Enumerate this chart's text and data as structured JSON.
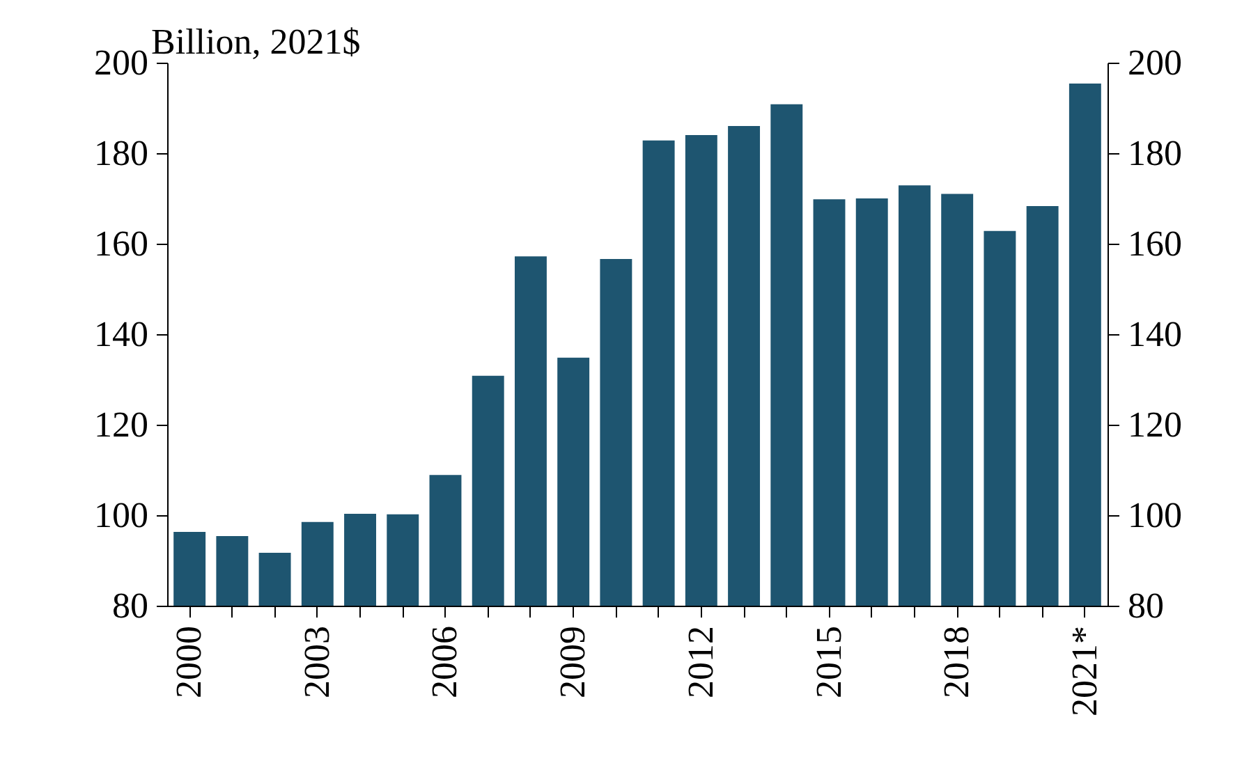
{
  "chart_data": {
    "type": "bar",
    "ylabel": "Billion, 2021$",
    "categories": [
      "2000",
      null,
      null,
      "2003",
      null,
      null,
      "2006",
      null,
      null,
      "2009",
      null,
      null,
      "2012",
      null,
      null,
      "2015",
      null,
      null,
      "2018",
      null,
      null,
      "2021*"
    ],
    "values": [
      96.3,
      95.4,
      91.7,
      98.5,
      100.3,
      100.2,
      108.9,
      130.8,
      157.2,
      134.8,
      156.6,
      182.8,
      184,
      186,
      190.8,
      169.8,
      170,
      172.9,
      171,
      162.8,
      168.3,
      195.4
    ],
    "color": "#1e5570",
    "ylim": [
      80,
      200
    ],
    "yticks": [
      80,
      100,
      120,
      140,
      160,
      180,
      200
    ],
    "y2lim": [
      80,
      200
    ],
    "y2ticks": [
      80,
      100,
      120,
      140,
      160,
      180,
      200
    ]
  }
}
